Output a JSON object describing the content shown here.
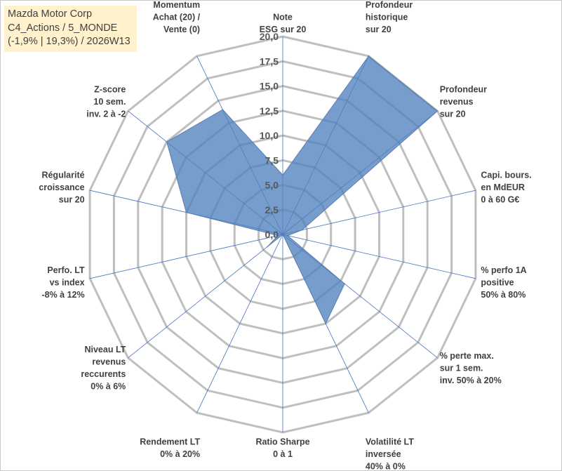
{
  "title_box": {
    "lines": [
      "Mazda Motor Corp",
      "C4_Actions / 5_MONDE",
      "(-1,9% | 19,3%) / 2026W13"
    ]
  },
  "colors": {
    "fill": "#4f81bd",
    "grid": "#bfbfbf",
    "spoke": "#4472c4",
    "title_bg": "#fff2cc"
  },
  "chart_data": {
    "type": "radar",
    "title": "",
    "rmin": 0,
    "rmax": 20,
    "ticks": [
      "0,0",
      "2,5",
      "5,0",
      "7,5",
      "10,0",
      "12,5",
      "15,0",
      "17,5",
      "20,0"
    ],
    "tick_values": [
      0,
      2.5,
      5,
      7.5,
      10,
      12.5,
      15,
      17.5,
      20
    ],
    "axes": [
      {
        "label": [
          "Note",
          "ESG sur 20"
        ],
        "value": 6.0
      },
      {
        "label": [
          "Profondeur",
          "historique",
          "sur 20"
        ],
        "value": 20.0
      },
      {
        "label": [
          "Profondeur",
          "revenus",
          "sur 20"
        ],
        "value": 20.0
      },
      {
        "label": [
          "Capi. bours.",
          "en MdEUR",
          "0 à 60 G€"
        ],
        "value": 2.0
      },
      {
        "label": [
          "% perfo 1A",
          "positive",
          "50% à 80%"
        ],
        "value": 0.5
      },
      {
        "label": [
          "% perte max.",
          "sur 1 sem.",
          "inv. 50% à 20%"
        ],
        "value": 8.0
      },
      {
        "label": [
          "Volatilité LT",
          "inversée",
          "40% à 0%"
        ],
        "value": 10.0
      },
      {
        "label": [
          "Ratio Sharpe",
          "0 à 1"
        ],
        "value": 0.0
      },
      {
        "label": [
          "Rendement LT",
          "0% à 20%"
        ],
        "value": 0.0
      },
      {
        "label": [
          "Niveau LT",
          "revenus",
          "reccurents",
          "0% à 6%"
        ],
        "value": 2.0
      },
      {
        "label": [
          "Perfo. LT",
          "vs index",
          "-8% à 12%"
        ],
        "value": 0.5
      },
      {
        "label": [
          "Régularité",
          "croissance",
          "sur 20"
        ],
        "value": 10.0
      },
      {
        "label": [
          "Z-score",
          "10 sem.",
          "inv. 2 à -2"
        ],
        "value": 15.0
      },
      {
        "label": [
          "Momentum",
          "Achat (20) /",
          "Vente (0)"
        ],
        "value": 14.0
      }
    ]
  }
}
